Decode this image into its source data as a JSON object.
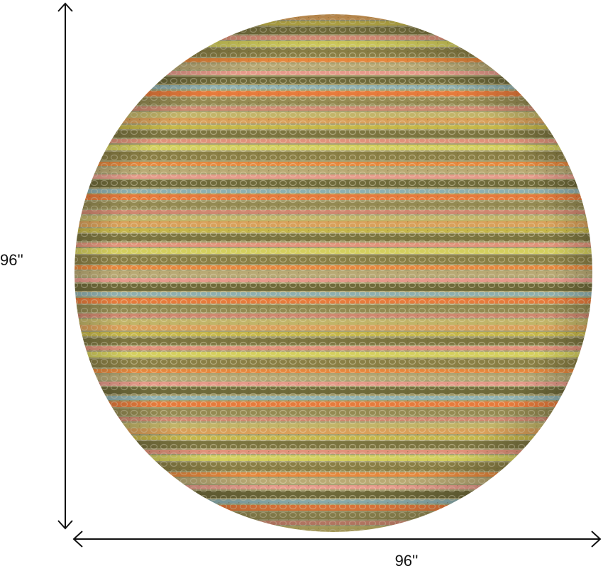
{
  "dimensions": {
    "height_label": "96''",
    "width_label": "96''"
  }
}
